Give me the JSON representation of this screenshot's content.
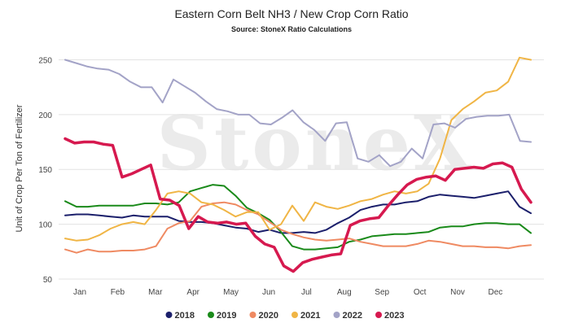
{
  "chart_data": {
    "type": "line",
    "title": "Eastern Corn Belt NH3 / New Crop Corn Ratio",
    "subtitle": "Source: StoneX Ratio Calculations",
    "ylabel": "Unit of Crop Per Ton of Fertilizer",
    "xlabel": "",
    "watermark": "StoneX",
    "ylim": [
      50,
      260
    ],
    "yticks": [
      50,
      100,
      150,
      200,
      250
    ],
    "grid": true,
    "legend_position": "bottom",
    "months": [
      "Jan",
      "Feb",
      "Mar",
      "Apr",
      "May",
      "Jun",
      "Jul",
      "Aug",
      "Sep",
      "Oct",
      "Nov",
      "Dec"
    ],
    "series": [
      {
        "name": "2018",
        "color": "#1b1f6b",
        "values": [
          108,
          109,
          109,
          108,
          107,
          106,
          108,
          107,
          107,
          107,
          103,
          102,
          102,
          101,
          99,
          97,
          96,
          93,
          95,
          92,
          92,
          93,
          92,
          95,
          101,
          106,
          113,
          116,
          118,
          118,
          120,
          121,
          125,
          127,
          126,
          125,
          124,
          126,
          128,
          130,
          116,
          110
        ]
      },
      {
        "name": "2019",
        "color": "#1a8a1a",
        "values": [
          121,
          116,
          116,
          117,
          117,
          117,
          117,
          119,
          119,
          118,
          120,
          130,
          133,
          136,
          135,
          126,
          115,
          110,
          104,
          93,
          80,
          77,
          77,
          78,
          79,
          84,
          86,
          89,
          90,
          91,
          91,
          92,
          93,
          97,
          98,
          98,
          100,
          101,
          101,
          100,
          100,
          92
        ]
      },
      {
        "name": "2020",
        "color": "#ef8a62",
        "values": [
          77,
          74,
          77,
          75,
          75,
          76,
          76,
          77,
          80,
          96,
          101,
          103,
          116,
          119,
          120,
          118,
          113,
          109,
          102,
          95,
          91,
          88,
          86,
          85,
          86,
          87,
          84,
          82,
          80,
          80,
          80,
          82,
          85,
          84,
          82,
          80,
          80,
          79,
          79,
          78,
          80,
          81
        ]
      },
      {
        "name": "2021",
        "color": "#f0b545",
        "values": [
          87,
          85,
          86,
          90,
          96,
          100,
          102,
          100,
          113,
          128,
          130,
          128,
          120,
          118,
          113,
          107,
          111,
          111,
          95,
          100,
          117,
          103,
          120,
          116,
          114,
          117,
          121,
          123,
          127,
          130,
          128,
          130,
          137,
          160,
          195,
          205,
          212,
          220,
          222,
          230,
          252,
          250
        ]
      },
      {
        "name": "2022",
        "color": "#a3a3c7",
        "values": [
          250,
          247,
          244,
          242,
          241,
          237,
          230,
          225,
          225,
          211,
          232,
          226,
          220,
          212,
          205,
          203,
          200,
          200,
          192,
          191,
          197,
          204,
          193,
          186,
          176,
          192,
          193,
          160,
          157,
          163,
          153,
          157,
          169,
          160,
          191,
          192,
          188,
          196,
          198,
          199,
          199,
          200,
          176,
          175
        ]
      },
      {
        "name": "2023",
        "color": "#d6194f",
        "values": [
          178,
          174,
          175,
          175,
          173,
          172,
          143,
          146,
          150,
          154,
          123,
          122,
          117,
          96,
          107,
          102,
          101,
          102,
          100,
          101,
          89,
          82,
          79,
          62,
          57,
          65,
          68,
          70,
          72,
          73,
          99,
          103,
          105,
          106,
          117,
          127,
          136,
          141,
          143,
          144,
          140,
          150,
          151,
          152,
          151,
          155,
          156,
          152,
          132,
          120
        ]
      }
    ]
  }
}
